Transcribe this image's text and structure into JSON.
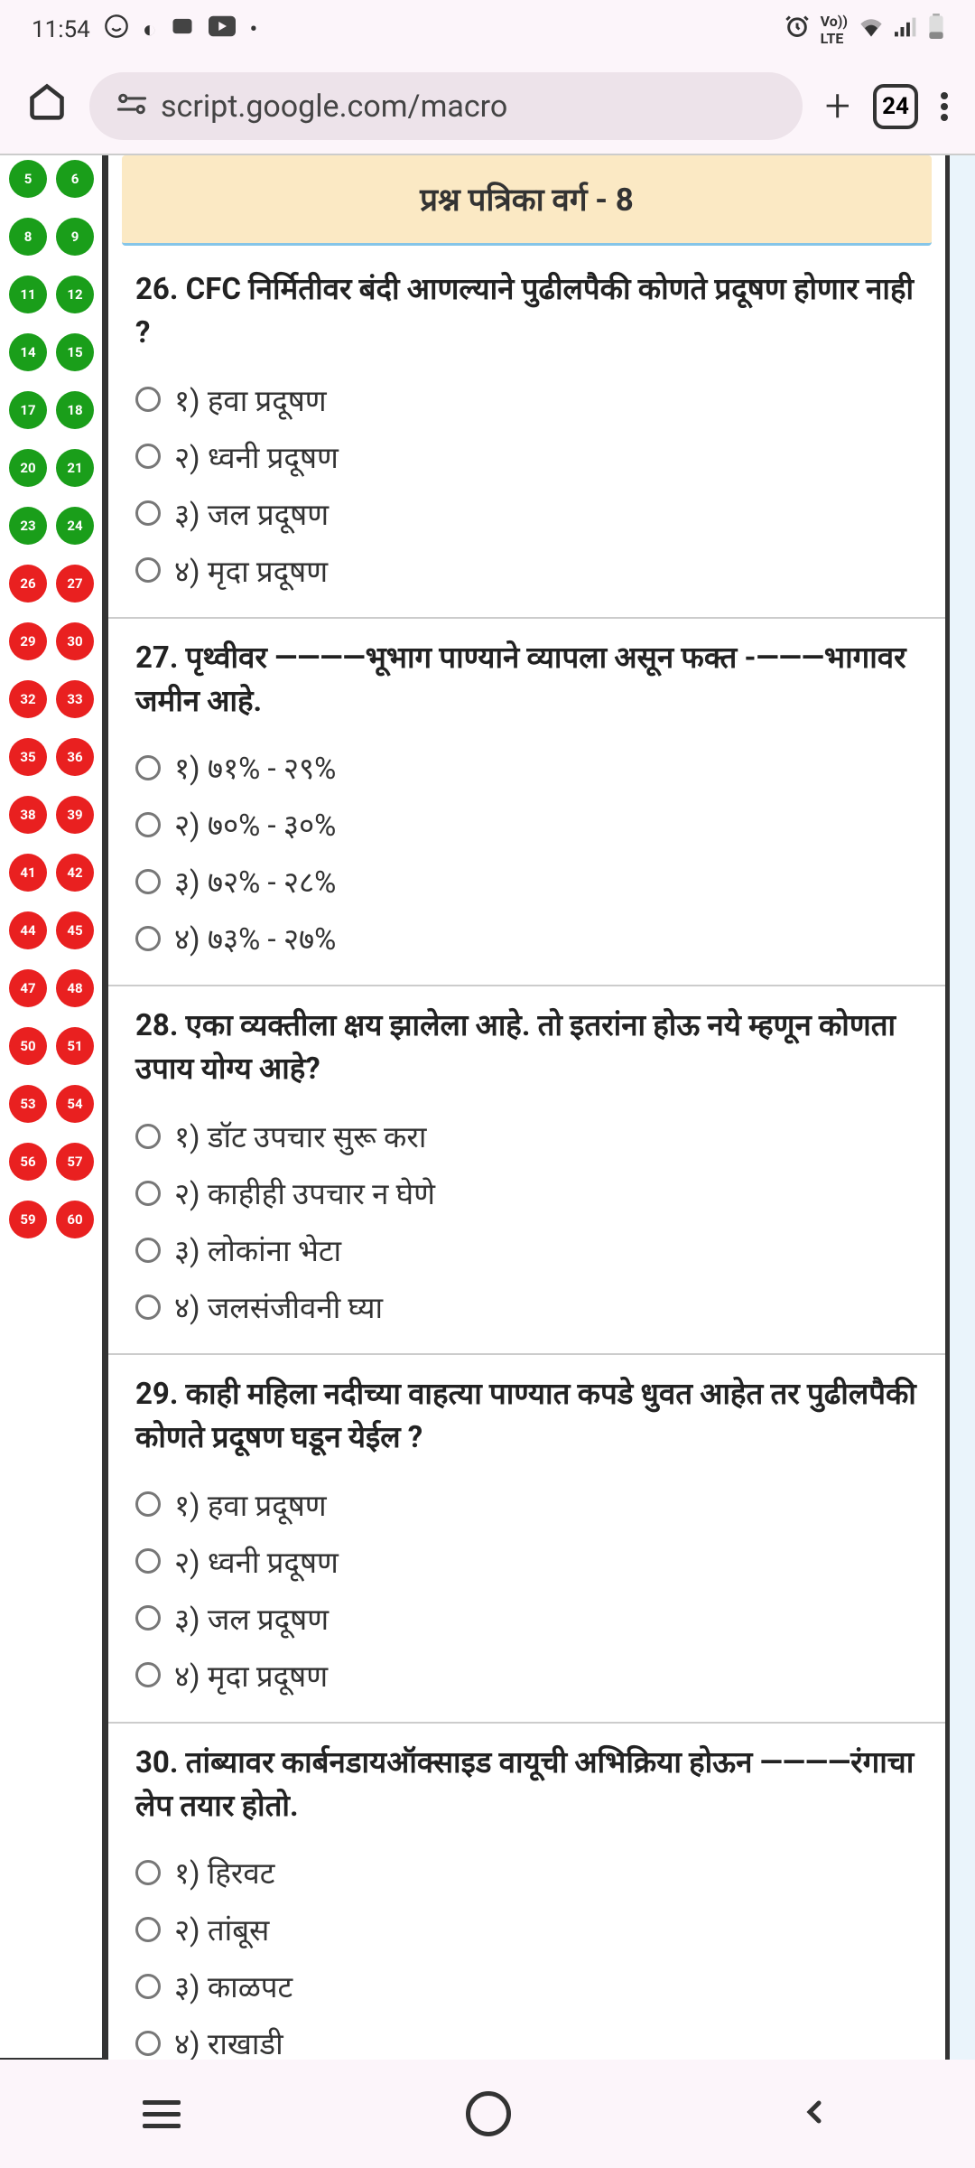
{
  "statusBar": {
    "time": "11:54",
    "tabCount": "24"
  },
  "browser": {
    "url": "script.google.com/macro"
  },
  "sidebar": {
    "dots": [
      {
        "num": "5",
        "color": "green"
      },
      {
        "num": "6",
        "color": "green"
      },
      {
        "num": "8",
        "color": "green"
      },
      {
        "num": "9",
        "color": "green"
      },
      {
        "num": "11",
        "color": "green"
      },
      {
        "num": "12",
        "color": "green"
      },
      {
        "num": "14",
        "color": "green"
      },
      {
        "num": "15",
        "color": "green"
      },
      {
        "num": "17",
        "color": "green"
      },
      {
        "num": "18",
        "color": "green"
      },
      {
        "num": "20",
        "color": "green"
      },
      {
        "num": "21",
        "color": "green"
      },
      {
        "num": "23",
        "color": "green"
      },
      {
        "num": "24",
        "color": "green"
      },
      {
        "num": "26",
        "color": "red"
      },
      {
        "num": "27",
        "color": "red"
      },
      {
        "num": "29",
        "color": "red"
      },
      {
        "num": "30",
        "color": "red"
      },
      {
        "num": "32",
        "color": "red"
      },
      {
        "num": "33",
        "color": "red"
      },
      {
        "num": "35",
        "color": "red"
      },
      {
        "num": "36",
        "color": "red"
      },
      {
        "num": "38",
        "color": "red"
      },
      {
        "num": "39",
        "color": "red"
      },
      {
        "num": "41",
        "color": "red"
      },
      {
        "num": "42",
        "color": "red"
      },
      {
        "num": "44",
        "color": "red"
      },
      {
        "num": "45",
        "color": "red"
      },
      {
        "num": "47",
        "color": "red"
      },
      {
        "num": "48",
        "color": "red"
      },
      {
        "num": "50",
        "color": "red"
      },
      {
        "num": "51",
        "color": "red"
      },
      {
        "num": "53",
        "color": "red"
      },
      {
        "num": "54",
        "color": "red"
      },
      {
        "num": "56",
        "color": "red"
      },
      {
        "num": "57",
        "color": "red"
      },
      {
        "num": "59",
        "color": "red"
      },
      {
        "num": "60",
        "color": "red"
      }
    ]
  },
  "quiz": {
    "headerTitle": "प्रश्न पत्रिका वर्ग - 8",
    "questions": [
      {
        "text": "26. CFC निर्मितीवर बंदी आणल्याने पुढीलपैकी कोणते प्रदूषण होणार नाही ?",
        "options": [
          "१) हवा प्रदूषण",
          "२) ध्वनी प्रदूषण",
          "३) जल प्रदूषण",
          "४) मृदा प्रदूषण"
        ]
      },
      {
        "text": "27. पृथ्वीवर ————भूभाग पाण्याने व्यापला असून फक्त -———भागावर जमीन आहे.",
        "options": [
          "१) ७१% - २९%",
          "२) ७०% - ३०%",
          "३) ७२% - २८%",
          "४) ७३% - २७%"
        ]
      },
      {
        "text": "28. एका व्यक्तीला क्षय झालेला आहे. तो इतरांना होऊ नये म्हणून कोणता उपाय योग्य आहे?",
        "options": [
          "१) डॉट उपचार सुरू करा",
          "२) काहीही उपचार न घेणे",
          "३) लोकांना भेटा",
          "४) जलसंजीवनी घ्या"
        ]
      },
      {
        "text": "29. काही महिला नदीच्या वाहत्या पाण्यात कपडे धुवत आहेत तर पुढीलपैकी कोणते प्रदूषण घडून येईल ?",
        "options": [
          "१) हवा प्रदूषण",
          "२) ध्वनी प्रदूषण",
          "३) जल प्रदूषण",
          "४) मृदा प्रदूषण"
        ]
      },
      {
        "text": "30. तांब्यावर कार्बनडायऑक्साइड वायूची अभिक्रिया होऊन ————रंगाचा लेप तयार होतो.",
        "options": [
          "१) हिरवट",
          "२) तांबूस",
          "३) काळपट",
          "४) राखाडी"
        ]
      }
    ]
  }
}
